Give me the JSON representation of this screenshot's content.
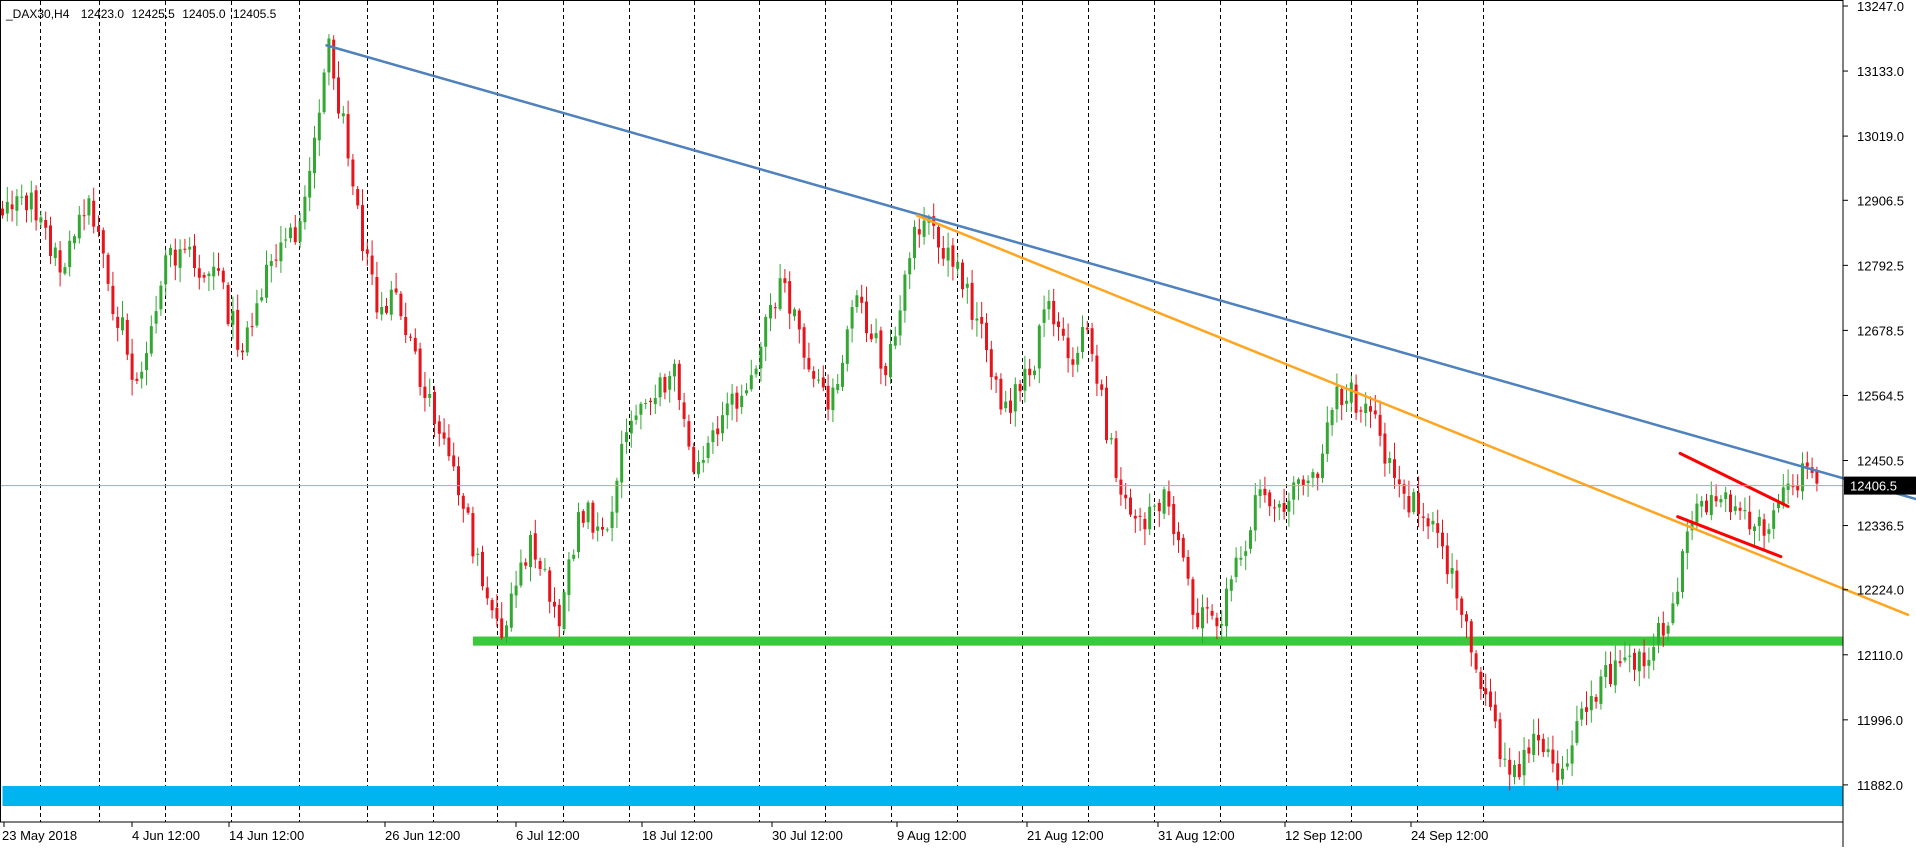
{
  "header": {
    "symbol": "_DAX30,H4",
    "open": "12423.0",
    "high": "12425.5",
    "low": "12405.0",
    "close": "12405.5"
  },
  "colors": {
    "bull": "#32a832",
    "bear": "#e8141c",
    "grid": "#000000",
    "trend_main": "#4f81bd",
    "trend_lower": "#ffa520",
    "flag": "#ff0000",
    "support": "#3cc83c",
    "bottom_band": "#00b4f0",
    "price_line": "#9aaebf"
  },
  "chart_data": {
    "type": "candlestick",
    "symbol": "_DAX30",
    "timeframe": "H4",
    "title": "",
    "ylim": [
      11840,
      13247
    ],
    "y_ticks": [
      "13247.0",
      "13133.0",
      "13019.0",
      "12906.5",
      "12792.5",
      "12678.5",
      "12564.5",
      "12450.5",
      "12336.5",
      "12224.0",
      "12110.0",
      "11996.0",
      "11882.0"
    ],
    "current_price": "12406.5",
    "x_labels": [
      "23 May 2018",
      "4 Jun 12:00",
      "14 Jun 12:00",
      "26 Jun 12:00",
      "6 Jul 12:00",
      "18 Jul 12:00",
      "30 Jul 12:00",
      "9 Aug 12:00",
      "21 Aug 12:00",
      "31 Aug 12:00",
      "12 Sep 12:00",
      "24 Sep 12:00"
    ],
    "grid": "vertical dashed",
    "candle_anchors": [
      {
        "i": 0,
        "p": 12880
      },
      {
        "i": 6,
        "p": 12920
      },
      {
        "i": 12,
        "p": 12780
      },
      {
        "i": 18,
        "p": 12910
      },
      {
        "i": 22,
        "p": 12760
      },
      {
        "i": 28,
        "p": 12590
      },
      {
        "i": 34,
        "p": 12810
      },
      {
        "i": 44,
        "p": 12790
      },
      {
        "i": 50,
        "p": 12640
      },
      {
        "i": 56,
        "p": 12800
      },
      {
        "i": 62,
        "p": 12870
      },
      {
        "i": 66,
        "p": 13060
      },
      {
        "i": 68,
        "p": 13190
      },
      {
        "i": 72,
        "p": 12980
      },
      {
        "i": 78,
        "p": 12710
      },
      {
        "i": 82,
        "p": 12745
      },
      {
        "i": 88,
        "p": 12560
      },
      {
        "i": 94,
        "p": 12440
      },
      {
        "i": 100,
        "p": 12230
      },
      {
        "i": 104,
        "p": 12140
      },
      {
        "i": 110,
        "p": 12320
      },
      {
        "i": 116,
        "p": 12160
      },
      {
        "i": 120,
        "p": 12360
      },
      {
        "i": 126,
        "p": 12330
      },
      {
        "i": 130,
        "p": 12500
      },
      {
        "i": 136,
        "p": 12560
      },
      {
        "i": 140,
        "p": 12620
      },
      {
        "i": 144,
        "p": 12430
      },
      {
        "i": 150,
        "p": 12530
      },
      {
        "i": 156,
        "p": 12600
      },
      {
        "i": 162,
        "p": 12770
      },
      {
        "i": 168,
        "p": 12610
      },
      {
        "i": 172,
        "p": 12540
      },
      {
        "i": 178,
        "p": 12740
      },
      {
        "i": 184,
        "p": 12600
      },
      {
        "i": 190,
        "p": 12860
      },
      {
        "i": 193,
        "p": 12875
      },
      {
        "i": 198,
        "p": 12790
      },
      {
        "i": 204,
        "p": 12690
      },
      {
        "i": 208,
        "p": 12540
      },
      {
        "i": 214,
        "p": 12600
      },
      {
        "i": 218,
        "p": 12730
      },
      {
        "i": 222,
        "p": 12630
      },
      {
        "i": 226,
        "p": 12680
      },
      {
        "i": 232,
        "p": 12420
      },
      {
        "i": 238,
        "p": 12330
      },
      {
        "i": 242,
        "p": 12400
      },
      {
        "i": 248,
        "p": 12180
      },
      {
        "i": 253,
        "p": 12160
      },
      {
        "i": 258,
        "p": 12280
      },
      {
        "i": 262,
        "p": 12400
      },
      {
        "i": 268,
        "p": 12380
      },
      {
        "i": 274,
        "p": 12420
      },
      {
        "i": 278,
        "p": 12580
      },
      {
        "i": 284,
        "p": 12550
      },
      {
        "i": 290,
        "p": 12420
      },
      {
        "i": 296,
        "p": 12350
      },
      {
        "i": 300,
        "p": 12300
      },
      {
        "i": 304,
        "p": 12180
      },
      {
        "i": 308,
        "p": 12050
      },
      {
        "i": 314,
        "p": 11900
      },
      {
        "i": 320,
        "p": 11960
      },
      {
        "i": 324,
        "p": 11890
      },
      {
        "i": 330,
        "p": 12010
      },
      {
        "i": 336,
        "p": 12100
      },
      {
        "i": 342,
        "p": 12090
      },
      {
        "i": 348,
        "p": 12200
      },
      {
        "i": 352,
        "p": 12340
      },
      {
        "i": 356,
        "p": 12390
      },
      {
        "i": 360,
        "p": 12360
      },
      {
        "i": 364,
        "p": 12330
      },
      {
        "i": 368,
        "p": 12330
      },
      {
        "i": 372,
        "p": 12410
      },
      {
        "i": 376,
        "p": 12440
      },
      {
        "i": 378,
        "p": 12410
      }
    ],
    "trendlines": [
      {
        "name": "main-resistance",
        "start": {
          "i": 67.5,
          "p": 13178
        },
        "end": {
          "i": 429,
          "p": 12310
        }
      },
      {
        "name": "lower-resistance",
        "start": {
          "i": 190.5,
          "p": 12880
        },
        "end": {
          "i": 397,
          "p": 12180
        }
      },
      {
        "name": "flag-upper",
        "start": {
          "i": 349.5,
          "p": 12463
        },
        "end": {
          "i": 372,
          "p": 12370
        }
      },
      {
        "name": "flag-lower",
        "start": {
          "i": 349,
          "p": 12352
        },
        "end": {
          "i": 370.5,
          "p": 12282
        }
      }
    ],
    "zones": [
      {
        "name": "support-zone",
        "start_i": 98,
        "end_i": 460,
        "p_low": 12126,
        "p_high": 12142
      },
      {
        "name": "bottom-zone",
        "start_i": 0,
        "end_i": 460,
        "p_low": 11845,
        "p_high": 11880
      }
    ]
  }
}
